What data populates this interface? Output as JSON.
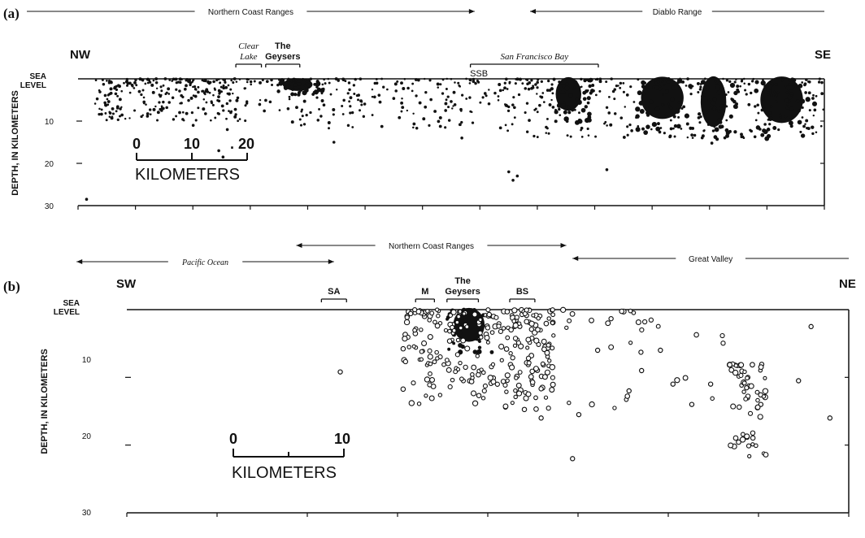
{
  "chart_data": [
    {
      "type": "scatter",
      "panel_label": "(a)",
      "ylabel": "DEPTH, IN KILOMETERS",
      "sea_level_label": [
        "SEA",
        "LEVEL"
      ],
      "y_ticks": [
        "10",
        "20",
        "30"
      ],
      "ylim": [
        0,
        30
      ],
      "xlim": [
        0,
        175
      ],
      "end_labels": {
        "left": "NW",
        "right": "SE"
      },
      "ranges": [
        {
          "label": "Northern Coast Ranges",
          "from": -12,
          "to": 93,
          "italic": false
        },
        {
          "label": "Diablo Range",
          "from": 106,
          "to": 175,
          "italic": false
        }
      ],
      "features": [
        {
          "label": [
            "Clear",
            "Lake"
          ],
          "from": 37,
          "to": 43,
          "italic": true
        },
        {
          "label": [
            "The",
            "Geysers"
          ],
          "from": 44,
          "to": 52,
          "italic": false
        },
        {
          "label": [
            "San Francisco Bay"
          ],
          "from": 92,
          "to": 122,
          "italic": true
        },
        {
          "label": [
            "SSB"
          ],
          "from": 92,
          "to": 96,
          "italic": false,
          "below": true
        }
      ],
      "scale_bar": {
        "ticks": [
          "0",
          "10",
          ". 20"
        ],
        "unit": "KILOMETERS",
        "km": 20
      },
      "dense_clusters": [
        {
          "x0": 48,
          "x1": 55,
          "d0": 0,
          "d1": 3,
          "label": "The Geysers"
        },
        {
          "x0": 112,
          "x1": 118,
          "d0": 0,
          "d1": 8
        },
        {
          "x0": 132,
          "x1": 142,
          "d0": 0,
          "d1": 10
        },
        {
          "x0": 146,
          "x1": 152,
          "d0": 0,
          "d1": 12
        },
        {
          "x0": 160,
          "x1": 170,
          "d0": 0,
          "d1": 11
        }
      ],
      "points": [
        {
          "x": 2,
          "d": 28.5
        },
        {
          "x": 33,
          "d": 17
        },
        {
          "x": 34,
          "d": 18.5
        },
        {
          "x": 35,
          "d": 12
        },
        {
          "x": 101,
          "d": 22
        },
        {
          "x": 102,
          "d": 24
        },
        {
          "x": 103,
          "d": 23
        },
        {
          "x": 124,
          "d": 21.5
        },
        {
          "x": 20,
          "d": 7
        },
        {
          "x": 27,
          "d": 11
        },
        {
          "x": 60,
          "d": 15
        },
        {
          "x": 90,
          "d": 14
        }
      ]
    },
    {
      "type": "scatter",
      "panel_label": "(b)",
      "ylabel": "DEPTH, IN KILOMETERS",
      "sea_level_label": [
        "SEA",
        "LEVEL"
      ],
      "y_ticks": [
        "10",
        "20",
        "30"
      ],
      "ylim": [
        0,
        30
      ],
      "xlim": [
        0,
        115
      ],
      "end_labels": {
        "left": "SW",
        "right": "NE"
      },
      "ranges": [
        {
          "label": "Northern Coast Ranges",
          "from": 27,
          "to": 70,
          "italic": false
        },
        {
          "label": "Pacific Ocean",
          "from": -8,
          "to": 33,
          "italic": true
        },
        {
          "label": "Great Valley",
          "from": 71,
          "to": 115,
          "italic": false
        }
      ],
      "features": [
        {
          "label": [
            "SA"
          ],
          "from": 31,
          "to": 35,
          "italic": false
        },
        {
          "label": [
            "M"
          ],
          "from": 46,
          "to": 49,
          "italic": false
        },
        {
          "label": [
            "The",
            "Geysers"
          ],
          "from": 51,
          "to": 56,
          "italic": false
        },
        {
          "label": [
            "BS"
          ],
          "from": 61,
          "to": 65,
          "italic": false
        }
      ],
      "scale_bar": {
        "ticks": [
          "0",
          "10"
        ],
        "unit": "KILOMETERS",
        "km": 10
      },
      "dense_clusters": [
        {
          "x0": 52,
          "x1": 57,
          "d0": 0,
          "d1": 5,
          "label": "The Geysers"
        }
      ],
      "points": [
        {
          "x": 34,
          "d": 9.2
        },
        {
          "x": 71,
          "d": 22
        },
        {
          "x": 66,
          "d": 16
        },
        {
          "x": 72,
          "d": 15.5
        },
        {
          "x": 75,
          "d": 6
        },
        {
          "x": 80,
          "d": 12
        },
        {
          "x": 82,
          "d": 9
        },
        {
          "x": 85,
          "d": 6
        },
        {
          "x": 87,
          "d": 11
        },
        {
          "x": 90,
          "d": 14
        },
        {
          "x": 93,
          "d": 11
        },
        {
          "x": 101,
          "d": 14
        },
        {
          "x": 107,
          "d": 10.5
        },
        {
          "x": 112,
          "d": 16
        },
        {
          "x": 109,
          "d": 2.5
        }
      ]
    }
  ]
}
